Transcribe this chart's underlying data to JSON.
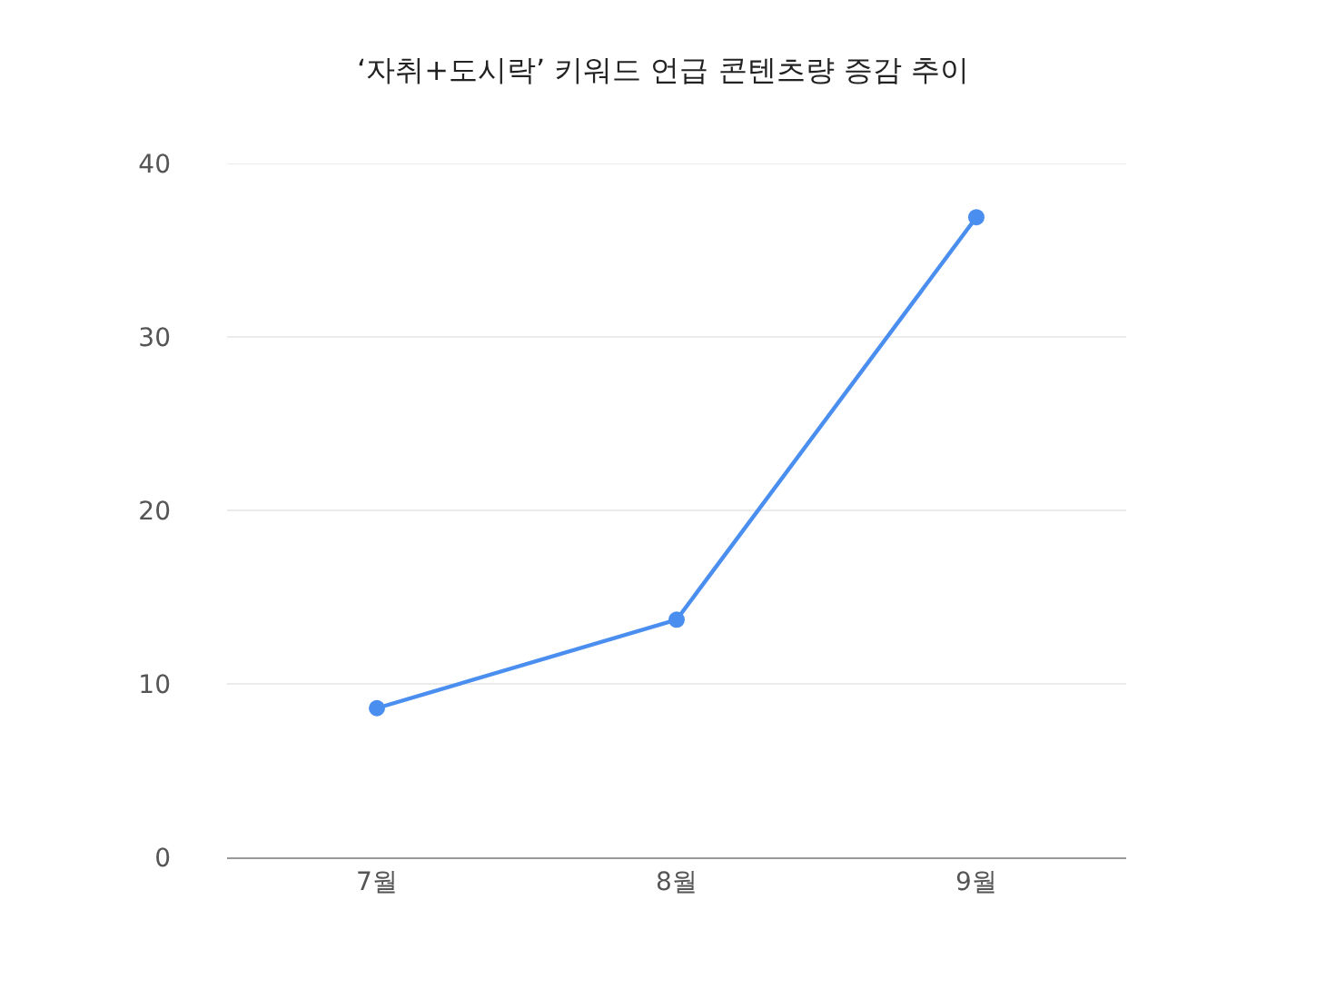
{
  "chart_data": {
    "type": "line",
    "title": "‘자취+도시락’ 키워드 언급 콘텐츠량 증감 추이",
    "categories": [
      "7월",
      "8월",
      "9월"
    ],
    "series": [
      {
        "color": "#4a8ff0",
        "values": [
          8.6,
          13.7,
          36.9
        ]
      }
    ],
    "ylim": [
      0,
      40
    ],
    "yticks": [
      0,
      10,
      20,
      30,
      40
    ],
    "grid": "y",
    "marker": "circle",
    "line_style": "solid"
  }
}
